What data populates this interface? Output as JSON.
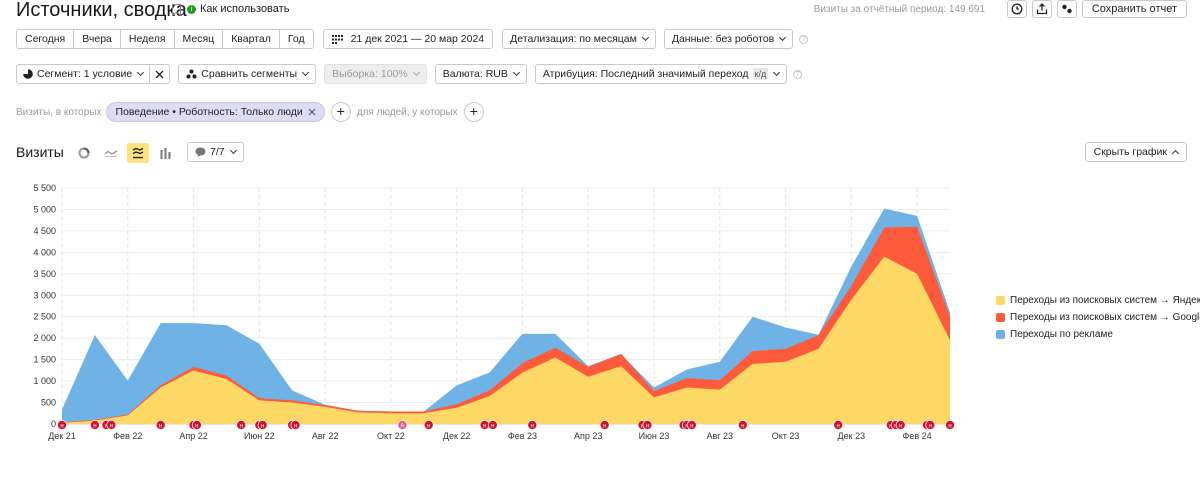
{
  "header": {
    "title": "Источники, сводка",
    "how_to_use": "Как использовать",
    "visits_period_label": "Визиты за отчётный период: 149 691",
    "save_report": "Сохранить отчет"
  },
  "period_tabs": [
    "Сегодня",
    "Вчера",
    "Неделя",
    "Месяц",
    "Квартал",
    "Год"
  ],
  "date_range": "21 дек 2021 — 20 мар 2024",
  "detail": "Детализация: по месяцам",
  "data_mode": "Данные: без роботов",
  "segment": "Сегмент: 1 условие",
  "compare_segments": "Сравнить сегменты",
  "sample": "Выборка: 100%",
  "currency": "Валюта: RUB",
  "attribution": "Атрибуция: Последний значимый переход",
  "attribution_badge": "к/д",
  "filter": {
    "prefix": "Визиты, в которых",
    "chip": "Поведение • Роботность: Только люди",
    "people_label": "для людей, у которых"
  },
  "chart_section": {
    "title": "Визиты",
    "series_counter": "7/7",
    "hide_chart": "Скрыть график"
  },
  "icons": {
    "clock": "clock-icon",
    "export": "export-icon",
    "settings": "settings-icon",
    "pie": "pie-chart-icon",
    "line": "line-chart-icon",
    "stacked": "stacked-area-icon",
    "bar": "bar-chart-icon",
    "comment": "comment-icon"
  },
  "chart_data": {
    "type": "area",
    "stacked": true,
    "x": [
      "Дек 21",
      "Янв 22",
      "Фев 22",
      "Мар 22",
      "Апр 22",
      "Май 22",
      "Июн 22",
      "Июл 22",
      "Авг 22",
      "Сен 22",
      "Окт 22",
      "Ноя 22",
      "Дек 22",
      "Янв 23",
      "Фев 23",
      "Мар 23",
      "Апр 23",
      "Май 23",
      "Июн 23",
      "Июл 23",
      "Авг 23",
      "Сен 23",
      "Окт 23",
      "Ноя 23",
      "Дек 23",
      "Янв 24",
      "Фев 24",
      "Мар 24"
    ],
    "x_tick_labels": [
      "Дек 21",
      "Фев 22",
      "Апр 22",
      "Июн 22",
      "Авг 22",
      "Окт 22",
      "Дек 22",
      "Фев 23",
      "Апр 23",
      "Июн 23",
      "Авг 23",
      "Окт 23",
      "Дек 23",
      "Фев 24"
    ],
    "y_ticks": [
      0,
      500,
      1000,
      1500,
      2000,
      2500,
      3000,
      3500,
      4000,
      4500,
      5000,
      5500
    ],
    "ylim": [
      0,
      5500
    ],
    "grid": true,
    "legend_position": "right",
    "series": [
      {
        "name": "Переходы из поисковых систем → Яндекс",
        "color": "#fdd865",
        "values": [
          30,
          80,
          200,
          850,
          1250,
          1050,
          550,
          500,
          400,
          270,
          250,
          250,
          380,
          650,
          1200,
          1550,
          1100,
          1350,
          620,
          850,
          800,
          1400,
          1450,
          1750,
          2900,
          3900,
          3500,
          1950
        ]
      },
      {
        "name": "Переходы из поисковых систем → Google",
        "color": "#fe5b3d",
        "values": [
          10,
          20,
          20,
          50,
          80,
          80,
          50,
          50,
          40,
          40,
          40,
          40,
          80,
          130,
          220,
          230,
          230,
          280,
          150,
          220,
          220,
          300,
          300,
          320,
          320,
          680,
          1100,
          550
        ]
      },
      {
        "name": "Переходы по рекламе",
        "color": "#6fb2e6",
        "values": [
          300,
          1970,
          790,
          1450,
          1020,
          1170,
          1270,
          230,
          10,
          0,
          0,
          0,
          440,
          420,
          680,
          320,
          20,
          0,
          80,
          200,
          430,
          800,
          500,
          10,
          450,
          440,
          250,
          100
        ]
      }
    ]
  },
  "annotation_marker": "н",
  "annotation_marker_alt": "А"
}
